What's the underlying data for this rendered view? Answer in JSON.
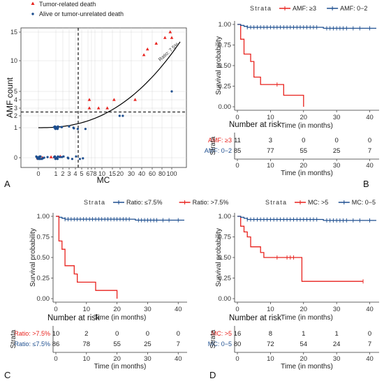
{
  "colors": {
    "red": "#e8211c",
    "blue": "#1d4e8f",
    "grid": "#d9d9d9",
    "text": "#333333"
  },
  "chart_data": [
    {
      "panel": "A",
      "type": "scatter",
      "xlabel": "MC",
      "ylabel": "AMF count",
      "xticks": [
        "0",
        "1",
        "2",
        "3",
        "4",
        "5",
        "6",
        "7",
        "8",
        "10",
        "15",
        "20",
        "30",
        "40",
        "60",
        "80",
        "100"
      ],
      "yticks": [
        "0",
        "1",
        "2",
        "3",
        "4",
        "5",
        "10",
        "15"
      ],
      "curve_label": "Ratio: 7.5%",
      "legend": [
        {
          "label": "Tumor-related death",
          "color": "red",
          "shape": "triangle"
        },
        {
          "label": "Alive or tumor-unrelated death",
          "color": "blue",
          "shape": "dot"
        }
      ],
      "reference_lines": {
        "vertical_x": 5,
        "horizontal_y": 2.5
      },
      "series": [
        {
          "name": "Tumor-related death",
          "color": "red",
          "points": [
            [
              0,
              0
            ],
            [
              0.3,
              0
            ],
            [
              0.7,
              0
            ],
            [
              1,
              0
            ],
            [
              1.4,
              0
            ],
            [
              7,
              3
            ],
            [
              7,
              4
            ],
            [
              9,
              3
            ],
            [
              12,
              3
            ],
            [
              15,
              4
            ],
            [
              30,
              4
            ],
            [
              40,
              11
            ],
            [
              45,
              12
            ],
            [
              60,
              13
            ],
            [
              80,
              14
            ],
            [
              95,
              15
            ],
            [
              100,
              14
            ]
          ]
        },
        {
          "name": "Alive or tumor-unrelated death",
          "color": "blue",
          "points": [
            [
              0,
              0
            ],
            [
              0,
              0
            ],
            [
              0,
              0
            ],
            [
              0,
              0
            ],
            [
              0,
              0
            ],
            [
              0,
              0
            ],
            [
              0,
              0
            ],
            [
              0,
              0
            ],
            [
              0,
              0
            ],
            [
              0,
              0
            ],
            [
              0.1,
              0
            ],
            [
              0.1,
              0
            ],
            [
              0.2,
              0
            ],
            [
              0.3,
              0
            ],
            [
              0.4,
              0
            ],
            [
              0.5,
              0
            ],
            [
              1,
              0
            ],
            [
              1,
              0
            ],
            [
              1,
              0
            ],
            [
              1,
              0
            ],
            [
              1,
              0
            ],
            [
              1,
              0
            ],
            [
              1.2,
              0
            ],
            [
              1.3,
              0
            ],
            [
              1.5,
              0
            ],
            [
              2,
              0
            ],
            [
              2,
              0
            ],
            [
              2,
              0
            ],
            [
              3,
              0
            ],
            [
              3,
              0
            ],
            [
              4,
              0
            ],
            [
              5,
              0
            ],
            [
              5,
              0
            ],
            [
              6,
              0
            ],
            [
              1,
              1
            ],
            [
              1,
              1
            ],
            [
              1,
              1
            ],
            [
              1,
              1
            ],
            [
              1,
              1
            ],
            [
              1,
              1
            ],
            [
              1,
              1
            ],
            [
              1,
              1
            ],
            [
              1.2,
              1
            ],
            [
              1.4,
              1
            ],
            [
              1.6,
              1
            ],
            [
              2,
              1
            ],
            [
              2.3,
              1
            ],
            [
              3,
              1
            ],
            [
              4,
              1
            ],
            [
              4,
              1
            ],
            [
              5,
              1
            ],
            [
              6,
              1
            ],
            [
              18,
              2
            ],
            [
              20,
              2
            ],
            [
              100,
              5
            ]
          ]
        }
      ]
    },
    {
      "panel": "B",
      "type": "line",
      "strata_title": "Strata",
      "xlabel": "Time (in months)",
      "ylabel": "Survival probability",
      "xlim": [
        0,
        42
      ],
      "ylim": [
        0,
        1
      ],
      "xticks": [
        "0",
        "10",
        "20",
        "30",
        "40"
      ],
      "yticks": [
        "0.00",
        "0.25",
        "0.50",
        "0.75",
        "1.00"
      ],
      "series": [
        {
          "name": "AMF: ≥3",
          "color": "red",
          "steps": [
            [
              0,
              1
            ],
            [
              1,
              0.82
            ],
            [
              2,
              0.64
            ],
            [
              4,
              0.55
            ],
            [
              5,
              0.36
            ],
            [
              7,
              0.27
            ],
            [
              14,
              0.14
            ],
            [
              20,
              0.0
            ]
          ],
          "end": 20,
          "censors": [
            12
          ]
        },
        {
          "name": "AMF: 0−2",
          "color": "blue",
          "steps": [
            [
              0,
              1
            ],
            [
              1,
              0.988
            ],
            [
              2,
              0.976
            ],
            [
              3,
              0.965
            ],
            [
              26,
              0.953
            ]
          ],
          "end": 42,
          "censors": [
            3,
            4,
            5,
            6,
            7,
            8,
            9,
            10,
            11,
            12,
            13,
            14,
            15,
            16,
            17,
            18,
            19,
            20,
            21,
            22,
            23,
            24,
            27,
            28,
            29,
            30,
            31,
            32,
            33,
            35,
            37,
            40
          ]
        }
      ],
      "risk_table": {
        "title": "Number at risk",
        "ylabel": "Strata",
        "times": [
          "0",
          "10",
          "20",
          "30",
          "40"
        ],
        "rows": [
          {
            "label": "AMF: ≥3",
            "color": "red",
            "values": [
              "11",
              "3",
              "0",
              "0",
              "0"
            ]
          },
          {
            "label": "AMF: 0−2",
            "color": "blue",
            "values": [
              "85",
              "77",
              "55",
              "25",
              "7"
            ]
          }
        ]
      }
    },
    {
      "panel": "C",
      "type": "line",
      "strata_title": "Strata",
      "xlabel": "Time (in months)",
      "ylabel": "Survival probability",
      "xlim": [
        0,
        42
      ],
      "ylim": [
        0,
        1
      ],
      "xticks": [
        "0",
        "10",
        "20",
        "30",
        "40"
      ],
      "yticks": [
        "0.00",
        "0.25",
        "0.50",
        "0.75",
        "1.00"
      ],
      "series": [
        {
          "name": "Ratio: ≤7.5%",
          "color": "blue",
          "steps": [
            [
              0,
              1
            ],
            [
              1,
              0.988
            ],
            [
              2,
              0.976
            ],
            [
              3,
              0.965
            ],
            [
              26,
              0.953
            ]
          ],
          "end": 42,
          "censors": [
            3,
            4,
            5,
            6,
            7,
            8,
            9,
            10,
            11,
            12,
            13,
            14,
            15,
            16,
            17,
            18,
            19,
            20,
            21,
            22,
            23,
            24,
            27,
            28,
            29,
            30,
            31,
            32,
            33,
            35,
            37,
            40
          ]
        },
        {
          "name": "Ratio: >7.5%",
          "color": "red",
          "steps": [
            [
              0,
              1
            ],
            [
              1,
              0.7
            ],
            [
              2,
              0.6
            ],
            [
              3,
              0.4
            ],
            [
              6,
              0.3
            ],
            [
              7,
              0.2
            ],
            [
              13,
              0.1
            ],
            [
              20,
              0.0
            ]
          ],
          "end": 20,
          "censors": []
        }
      ],
      "risk_table": {
        "title": "Number at risk",
        "ylabel": "Strata",
        "times": [
          "0",
          "10",
          "20",
          "30",
          "40"
        ],
        "rows": [
          {
            "label": "Ratio: >7.5%",
            "color": "red",
            "values": [
              "10",
              "2",
              "0",
              "0",
              "0"
            ]
          },
          {
            "label": "Ratio: ≤7.5%",
            "color": "blue",
            "values": [
              "86",
              "78",
              "55",
              "25",
              "7"
            ]
          }
        ]
      }
    },
    {
      "panel": "D",
      "type": "line",
      "strata_title": "Strata",
      "xlabel": "Time (in months)",
      "ylabel": "Survival probability",
      "xlim": [
        0,
        42
      ],
      "ylim": [
        0,
        1
      ],
      "xticks": [
        "0",
        "10",
        "20",
        "30",
        "40"
      ],
      "yticks": [
        "0.00",
        "0.25",
        "0.50",
        "0.75",
        "1.00"
      ],
      "series": [
        {
          "name": "MC: >5",
          "color": "red",
          "steps": [
            [
              0,
              1
            ],
            [
              1,
              0.88
            ],
            [
              2,
              0.81
            ],
            [
              3,
              0.75
            ],
            [
              4,
              0.63
            ],
            [
              7,
              0.56
            ],
            [
              8,
              0.5
            ],
            [
              19.5,
              0.21
            ]
          ],
          "end": 38,
          "censors": [
            12,
            15,
            16,
            17,
            38
          ]
        },
        {
          "name": "MC: 0−5",
          "color": "blue",
          "steps": [
            [
              0,
              1
            ],
            [
              1,
              0.988
            ],
            [
              2,
              0.975
            ],
            [
              3,
              0.962
            ],
            [
              26,
              0.95
            ]
          ],
          "end": 42,
          "censors": [
            3,
            4,
            5,
            6,
            7,
            8,
            9,
            10,
            11,
            12,
            13,
            14,
            15,
            16,
            17,
            18,
            19,
            20,
            21,
            22,
            23,
            24,
            27,
            28,
            29,
            30,
            31,
            32,
            33,
            35,
            37,
            40
          ]
        }
      ],
      "risk_table": {
        "title": "Number at risk",
        "ylabel": "Strata",
        "times": [
          "0",
          "10",
          "20",
          "30",
          "40"
        ],
        "rows": [
          {
            "label": "MC: >5",
            "color": "red",
            "values": [
              "16",
              "8",
              "1",
              "1",
              "0"
            ]
          },
          {
            "label": "MC: 0−5",
            "color": "blue",
            "values": [
              "80",
              "72",
              "54",
              "24",
              "7"
            ]
          }
        ]
      }
    }
  ]
}
